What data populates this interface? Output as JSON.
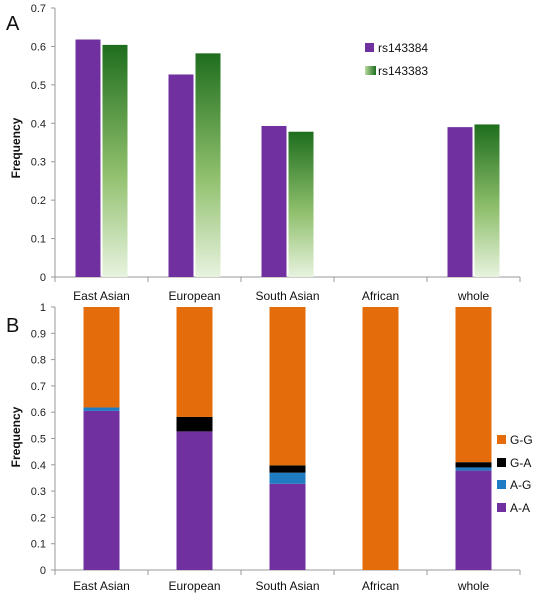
{
  "colors": {
    "purple": "#7030a0",
    "green_dark": "#1e6e1e",
    "green_light": "#e6f2dc",
    "orange": "#e46c0a",
    "black": "#000000",
    "blue": "#1f7bc2"
  },
  "chart_data": [
    {
      "panel": "A",
      "type": "bar",
      "ylabel": "Frequency",
      "ylim": [
        0,
        0.7
      ],
      "yticks": [
        "0",
        "0.1",
        "0.2",
        "0.3",
        "0.4",
        "0.5",
        "0.6",
        "0.7"
      ],
      "categories": [
        "East Asian",
        "European",
        "South Asian",
        "African",
        "whole"
      ],
      "series": [
        {
          "name": "rs143384",
          "values": [
            0.618,
            0.527,
            0.393,
            0,
            0.39
          ]
        },
        {
          "name": "rs143383",
          "values": [
            0.604,
            0.582,
            0.378,
            0,
            0.397
          ]
        }
      ],
      "legend_position": "top-right"
    },
    {
      "panel": "B",
      "type": "bar",
      "stacked": true,
      "ylabel": "Frequency",
      "ylim": [
        0,
        1
      ],
      "yticks": [
        "0",
        "0.1",
        "0.2",
        "0.3",
        "0.4",
        "0.5",
        "0.6",
        "0.7",
        "0.8",
        "0.9",
        "1"
      ],
      "categories": [
        "East Asian",
        "European",
        "South Asian",
        "African",
        "whole"
      ],
      "series": [
        {
          "name": "A-A",
          "values": [
            0.605,
            0.527,
            0.328,
            0,
            0.378
          ]
        },
        {
          "name": "A-G",
          "values": [
            0.013,
            0,
            0.042,
            0,
            0.012
          ]
        },
        {
          "name": "G-A",
          "values": [
            0,
            0.055,
            0.028,
            0,
            0.02
          ]
        },
        {
          "name": "G-G",
          "values": [
            0.382,
            0.418,
            0.602,
            1.0,
            0.59
          ]
        }
      ],
      "legend_order": [
        "G-G",
        "G-A",
        "A-G",
        "A-A"
      ],
      "legend_position": "right"
    }
  ]
}
